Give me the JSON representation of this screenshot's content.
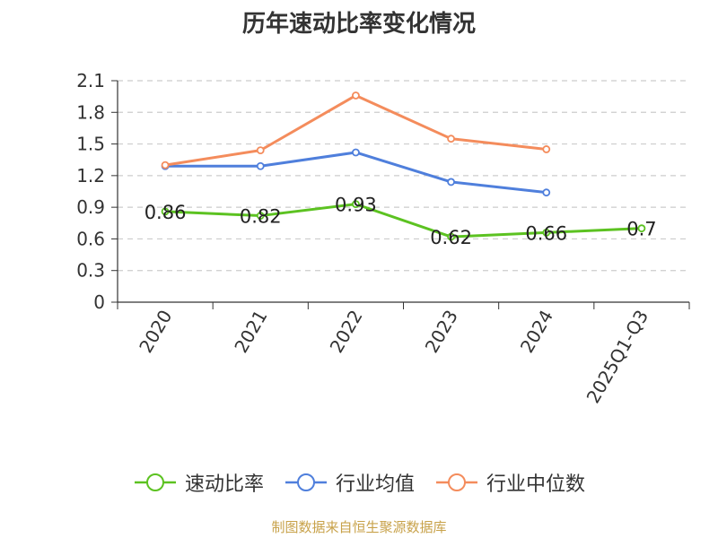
{
  "chart_data": {
    "type": "line",
    "title": "历年速动比率变化情况",
    "categories": [
      "2020",
      "2021",
      "2022",
      "2023",
      "2024",
      "2025Q1-Q3"
    ],
    "y_ticks": [
      "0",
      "0.3",
      "0.6",
      "0.9",
      "1.2",
      "1.5",
      "1.8",
      "2.1"
    ],
    "ylim": [
      0,
      2.1
    ],
    "grid": true,
    "legend_position": "bottom",
    "series": [
      {
        "name": "速动比率",
        "color": "#5cc221",
        "values": [
          0.86,
          0.82,
          0.93,
          0.62,
          0.66,
          0.7
        ],
        "labels": [
          "0.86",
          "0.82",
          "0.93",
          "0.62",
          "0.66",
          "0.7"
        ]
      },
      {
        "name": "行业均值",
        "color": "#4f7fdc",
        "values": [
          1.29,
          1.29,
          1.42,
          1.14,
          1.04,
          null
        ]
      },
      {
        "name": "行业中位数",
        "color": "#f48c5c",
        "values": [
          1.3,
          1.44,
          1.96,
          1.55,
          1.45,
          null
        ]
      }
    ]
  },
  "source": "制图数据来自恒生聚源数据库"
}
